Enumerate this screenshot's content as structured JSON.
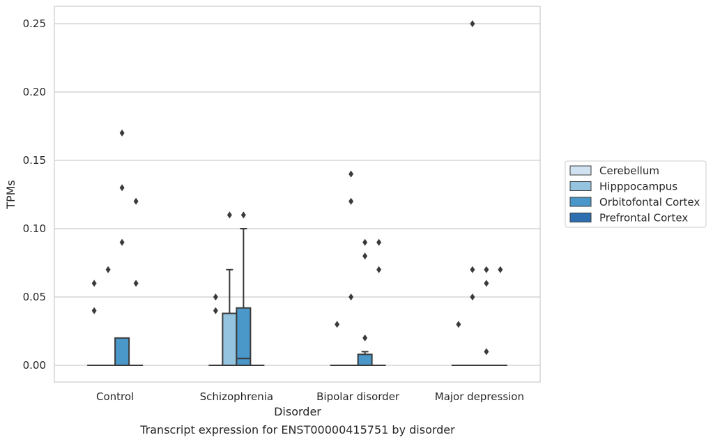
{
  "chart_data": {
    "type": "box",
    "xlabel": "Disorder",
    "ylabel": "TPMs",
    "caption": "Transcript expression for ENST00000415751 by disorder",
    "categories": [
      "Control",
      "Schizophrenia",
      "Bipolar disorder",
      "Major depression"
    ],
    "y_ticks": [
      "0.00",
      "0.05",
      "0.10",
      "0.15",
      "0.20",
      "0.25"
    ],
    "ylim": [
      -0.012,
      0.263
    ],
    "grid": true,
    "legend_position": "right",
    "series": [
      {
        "name": "Cerebellum",
        "color": "#d0e1f2"
      },
      {
        "name": "Hipppocampus",
        "color": "#94c4df"
      },
      {
        "name": "Orbitofontal Cortex",
        "color": "#4a98c9"
      },
      {
        "name": "Prefrontal Cortex",
        "color": "#2e6faf"
      }
    ],
    "boxes": [
      {
        "category": 0,
        "series": 0,
        "q1": 0,
        "median": 0,
        "q3": 0,
        "whisker_low": 0,
        "whisker_high": 0,
        "outliers": [
          0.04,
          0.06
        ]
      },
      {
        "category": 0,
        "series": 1,
        "q1": 0,
        "median": 0,
        "q3": 0,
        "whisker_low": 0,
        "whisker_high": 0,
        "outliers": [
          0.07
        ]
      },
      {
        "category": 0,
        "series": 2,
        "q1": 0,
        "median": 0,
        "q3": 0.02,
        "whisker_low": 0,
        "whisker_high": 0.02,
        "outliers": [
          0.09,
          0.13,
          0.17
        ]
      },
      {
        "category": 0,
        "series": 3,
        "q1": 0,
        "median": 0,
        "q3": 0,
        "whisker_low": 0,
        "whisker_high": 0,
        "outliers": [
          0.06,
          0.12
        ]
      },
      {
        "category": 1,
        "series": 0,
        "q1": 0,
        "median": 0,
        "q3": 0,
        "whisker_low": 0,
        "whisker_high": 0,
        "outliers": [
          0.04,
          0.05
        ]
      },
      {
        "category": 1,
        "series": 1,
        "q1": 0,
        "median": 0,
        "q3": 0.038,
        "whisker_low": 0,
        "whisker_high": 0.07,
        "outliers": [
          0.11
        ]
      },
      {
        "category": 1,
        "series": 2,
        "q1": 0,
        "median": 0.005,
        "q3": 0.042,
        "whisker_low": 0,
        "whisker_high": 0.1,
        "outliers": [
          0.11
        ]
      },
      {
        "category": 1,
        "series": 3,
        "q1": 0,
        "median": 0,
        "q3": 0,
        "whisker_low": 0,
        "whisker_high": 0,
        "outliers": []
      },
      {
        "category": 2,
        "series": 0,
        "q1": 0,
        "median": 0,
        "q3": 0,
        "whisker_low": 0,
        "whisker_high": 0,
        "outliers": [
          0.03
        ]
      },
      {
        "category": 2,
        "series": 1,
        "q1": 0,
        "median": 0,
        "q3": 0,
        "whisker_low": 0,
        "whisker_high": 0,
        "outliers": [
          0.05,
          0.12,
          0.14
        ]
      },
      {
        "category": 2,
        "series": 2,
        "q1": 0,
        "median": 0,
        "q3": 0.008,
        "whisker_low": 0,
        "whisker_high": 0.01,
        "outliers": [
          0.02,
          0.08,
          0.09
        ]
      },
      {
        "category": 2,
        "series": 3,
        "q1": 0,
        "median": 0,
        "q3": 0,
        "whisker_low": 0,
        "whisker_high": 0,
        "outliers": [
          0.07,
          0.09
        ]
      },
      {
        "category": 3,
        "series": 0,
        "q1": 0,
        "median": 0,
        "q3": 0,
        "whisker_low": 0,
        "whisker_high": 0,
        "outliers": [
          0.03
        ]
      },
      {
        "category": 3,
        "series": 1,
        "q1": 0,
        "median": 0,
        "q3": 0,
        "whisker_low": 0,
        "whisker_high": 0,
        "outliers": [
          0.05,
          0.07,
          0.25
        ]
      },
      {
        "category": 3,
        "series": 2,
        "q1": 0,
        "median": 0,
        "q3": 0,
        "whisker_low": 0,
        "whisker_high": 0,
        "outliers": [
          0.01,
          0.06,
          0.07
        ]
      },
      {
        "category": 3,
        "series": 3,
        "q1": 0,
        "median": 0,
        "q3": 0,
        "whisker_low": 0,
        "whisker_high": 0,
        "outliers": [
          0.07
        ]
      }
    ]
  }
}
